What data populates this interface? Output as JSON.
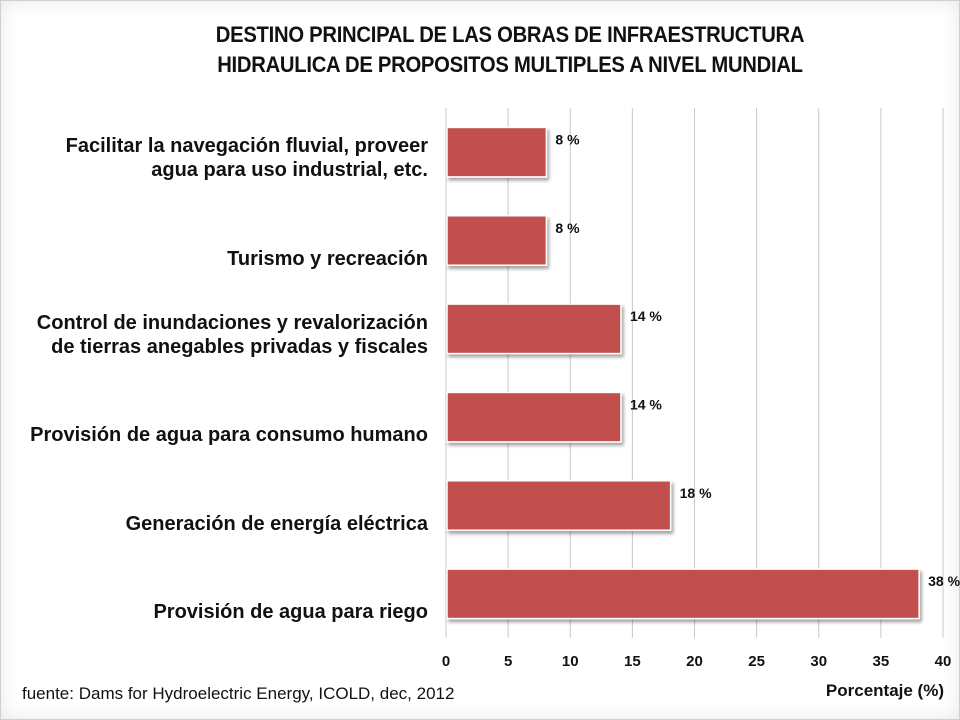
{
  "chart_data": {
    "type": "bar",
    "orientation": "horizontal",
    "title_lines": [
      "DESTINO PRINCIPAL DE LAS OBRAS DE INFRAESTRUCTURA",
      "HIDRAULICA  DE PROPOSITOS MULTIPLES A NIVEL MUNDIAL"
    ],
    "categories": [
      [
        "Facilitar la navegación fluvial, proveer",
        "agua para uso industrial, etc."
      ],
      [
        "Turismo y recreación"
      ],
      [
        "Control de inundaciones y revalorización",
        "de tierras anegables privadas y fiscales"
      ],
      [
        "Provisión de agua para consumo humano"
      ],
      [
        "Generación de energía eléctrica"
      ],
      [
        "Provisión de agua para riego"
      ]
    ],
    "values": [
      8,
      8,
      14,
      14,
      18,
      38
    ],
    "data_labels": [
      "8 %",
      "8 %",
      "14 %",
      "14 %",
      "18 %",
      "38 %"
    ],
    "xlabel": "Porcentaje (%)",
    "xlim": [
      0,
      40
    ],
    "xticks": [
      0,
      5,
      10,
      15,
      20,
      25,
      30,
      35,
      40
    ],
    "grid": true,
    "bar_color": "#c0504d",
    "grid_color": "#c8c8c8"
  },
  "source_note": "fuente: Dams for Hydroelectric Energy, ICOLD, dec, 2012"
}
